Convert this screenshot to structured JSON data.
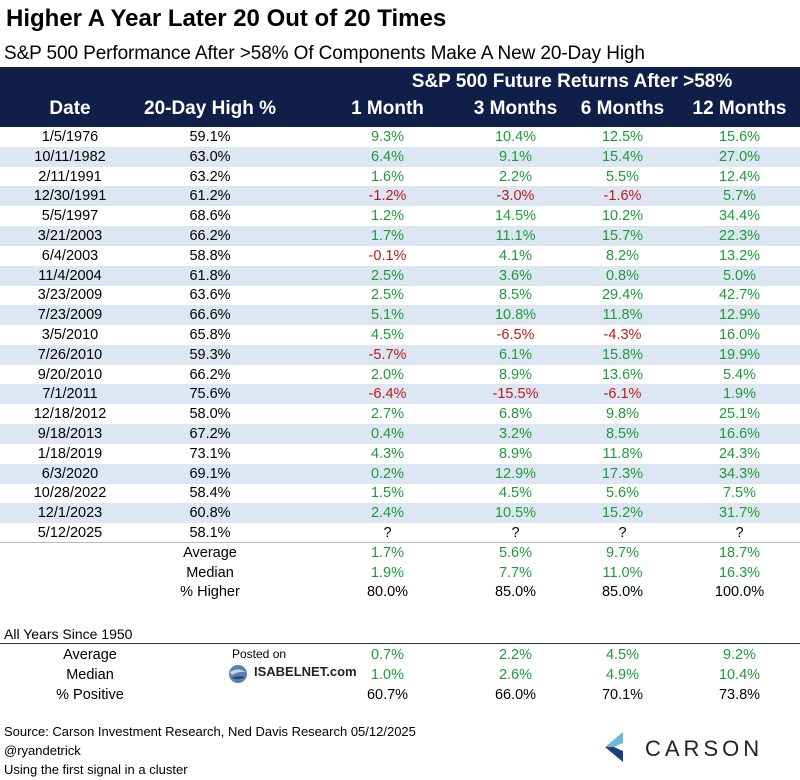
{
  "title": "Higher A Year Later 20 Out of 20 Times",
  "subtitle": "S&P 500 Performance After >58% Of Components Make A New 20-Day High",
  "header": {
    "group_label": "S&P 500 Future Returns After >58%",
    "columns": [
      "Date",
      "20-Day High %",
      "1 Month",
      "3 Months",
      "6 Months",
      "12 Months"
    ]
  },
  "colors": {
    "header_bg": "#0f1f4a",
    "stripe": "#dde6f3",
    "positive": "#1f9a3a",
    "negative": "#c01818"
  },
  "chart_data": {
    "type": "table",
    "title": "Higher A Year Later 20 Out of 20 Times",
    "subtitle": "S&P 500 Performance After >58% Of Components Make A New 20-Day High",
    "columns": [
      "Date",
      "20-Day High %",
      "1 Month",
      "3 Months",
      "6 Months",
      "12 Months"
    ],
    "rows": [
      [
        "1/5/1976",
        "59.1%",
        "9.3%",
        "10.4%",
        "12.5%",
        "15.6%"
      ],
      [
        "10/11/1982",
        "63.0%",
        "6.4%",
        "9.1%",
        "15.4%",
        "27.0%"
      ],
      [
        "2/11/1991",
        "63.2%",
        "1.6%",
        "2.2%",
        "5.5%",
        "12.4%"
      ],
      [
        "12/30/1991",
        "61.2%",
        "-1.2%",
        "-3.0%",
        "-1.6%",
        "5.7%"
      ],
      [
        "5/5/1997",
        "68.6%",
        "1.2%",
        "14.5%",
        "10.2%",
        "34.4%"
      ],
      [
        "3/21/2003",
        "66.2%",
        "1.7%",
        "11.1%",
        "15.7%",
        "22.3%"
      ],
      [
        "6/4/2003",
        "58.8%",
        "-0.1%",
        "4.1%",
        "8.2%",
        "13.2%"
      ],
      [
        "11/4/2004",
        "61.8%",
        "2.5%",
        "3.6%",
        "0.8%",
        "5.0%"
      ],
      [
        "3/23/2009",
        "63.6%",
        "2.5%",
        "8.5%",
        "29.4%",
        "42.7%"
      ],
      [
        "7/23/2009",
        "66.6%",
        "5.1%",
        "10.8%",
        "11.8%",
        "12.9%"
      ],
      [
        "3/5/2010",
        "65.8%",
        "4.5%",
        "-6.5%",
        "-4.3%",
        "16.0%"
      ],
      [
        "7/26/2010",
        "59.3%",
        "-5.7%",
        "6.1%",
        "15.8%",
        "19.9%"
      ],
      [
        "9/20/2010",
        "66.2%",
        "2.0%",
        "8.9%",
        "13.6%",
        "5.4%"
      ],
      [
        "7/1/2011",
        "75.6%",
        "-6.4%",
        "-15.5%",
        "-6.1%",
        "1.9%"
      ],
      [
        "12/18/2012",
        "58.0%",
        "2.7%",
        "6.8%",
        "9.8%",
        "25.1%"
      ],
      [
        "9/18/2013",
        "67.2%",
        "0.4%",
        "3.2%",
        "8.5%",
        "16.6%"
      ],
      [
        "1/18/2019",
        "73.1%",
        "4.3%",
        "8.9%",
        "11.8%",
        "24.3%"
      ],
      [
        "6/3/2020",
        "69.1%",
        "0.2%",
        "12.9%",
        "17.3%",
        "34.3%"
      ],
      [
        "10/28/2022",
        "58.4%",
        "1.5%",
        "4.5%",
        "5.6%",
        "7.5%"
      ],
      [
        "12/1/2023",
        "60.8%",
        "2.4%",
        "10.5%",
        "15.2%",
        "31.7%"
      ],
      [
        "5/12/2025",
        "58.1%",
        "?",
        "?",
        "?",
        "?"
      ]
    ],
    "summary": [
      [
        "Average",
        "1.7%",
        "5.6%",
        "9.7%",
        "18.7%"
      ],
      [
        "Median",
        "1.9%",
        "7.7%",
        "11.0%",
        "16.3%"
      ],
      [
        "% Higher",
        "80.0%",
        "85.0%",
        "85.0%",
        "100.0%"
      ]
    ],
    "all_years_label": "All Years Since 1950",
    "all_years": [
      [
        "Average",
        "0.7%",
        "2.2%",
        "4.5%",
        "9.2%"
      ],
      [
        "Median",
        "1.0%",
        "2.6%",
        "4.9%",
        "10.4%"
      ],
      [
        "% Positive",
        "60.7%",
        "66.0%",
        "70.1%",
        "73.8%"
      ]
    ]
  },
  "watermark": {
    "posted_on": "Posted on",
    "site": "ISABELNET.com"
  },
  "footer": {
    "source": "Source: Carson Investment Research, Ned Davis Research 05/12/2025",
    "handle": "@ryandetrick",
    "note": "Using the first signal in a cluster",
    "logo_text": "CARSON"
  }
}
